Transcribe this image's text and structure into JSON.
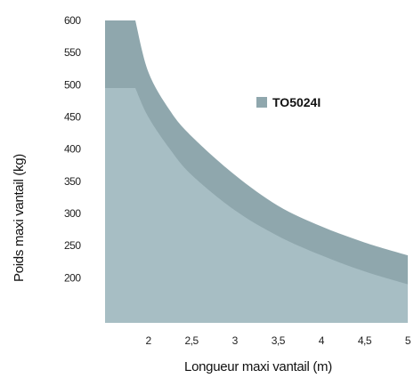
{
  "chart_data": {
    "type": "area",
    "xlabel": "Longueur maxi vantail (m)",
    "ylabel": "Poids maxi vantail (kg)",
    "x_ticks": [
      {
        "value": 2,
        "label": "2"
      },
      {
        "value": 2.5,
        "label": "2,5"
      },
      {
        "value": 3,
        "label": "3"
      },
      {
        "value": 3.5,
        "label": "3,5"
      },
      {
        "value": 4,
        "label": "4"
      },
      {
        "value": 4.5,
        "label": "4,5"
      },
      {
        "value": 5,
        "label": "5"
      }
    ],
    "y_ticks": [
      {
        "value": 200,
        "label": "200"
      },
      {
        "value": 250,
        "label": "250"
      },
      {
        "value": 300,
        "label": "300"
      },
      {
        "value": 350,
        "label": "350"
      },
      {
        "value": 400,
        "label": "400"
      },
      {
        "value": 450,
        "label": "450"
      },
      {
        "value": 500,
        "label": "500"
      },
      {
        "value": 550,
        "label": "550"
      },
      {
        "value": 600,
        "label": "600"
      }
    ],
    "xlim": [
      1.5,
      5
    ],
    "ylim": [
      130,
      600
    ],
    "series": [
      {
        "name": "TO5024I",
        "color": "#8fa7ad",
        "x": [
          1.5,
          1.85,
          2.0,
          2.25,
          2.5,
          3.0,
          3.5,
          4.0,
          4.5,
          5.0
        ],
        "values": [
          600,
          600,
          520,
          460,
          420,
          360,
          312,
          280,
          255,
          235
        ]
      },
      {
        "name": "",
        "color": "#a7bec4",
        "x": [
          1.5,
          1.85,
          2.0,
          2.25,
          2.5,
          3.0,
          3.5,
          4.0,
          4.5,
          5.0
        ],
        "values": [
          495,
          495,
          450,
          400,
          360,
          305,
          265,
          235,
          210,
          190
        ]
      }
    ],
    "legend": {
      "label": "TO5024I",
      "position": "top-right",
      "color": "#8fa7ad"
    }
  }
}
